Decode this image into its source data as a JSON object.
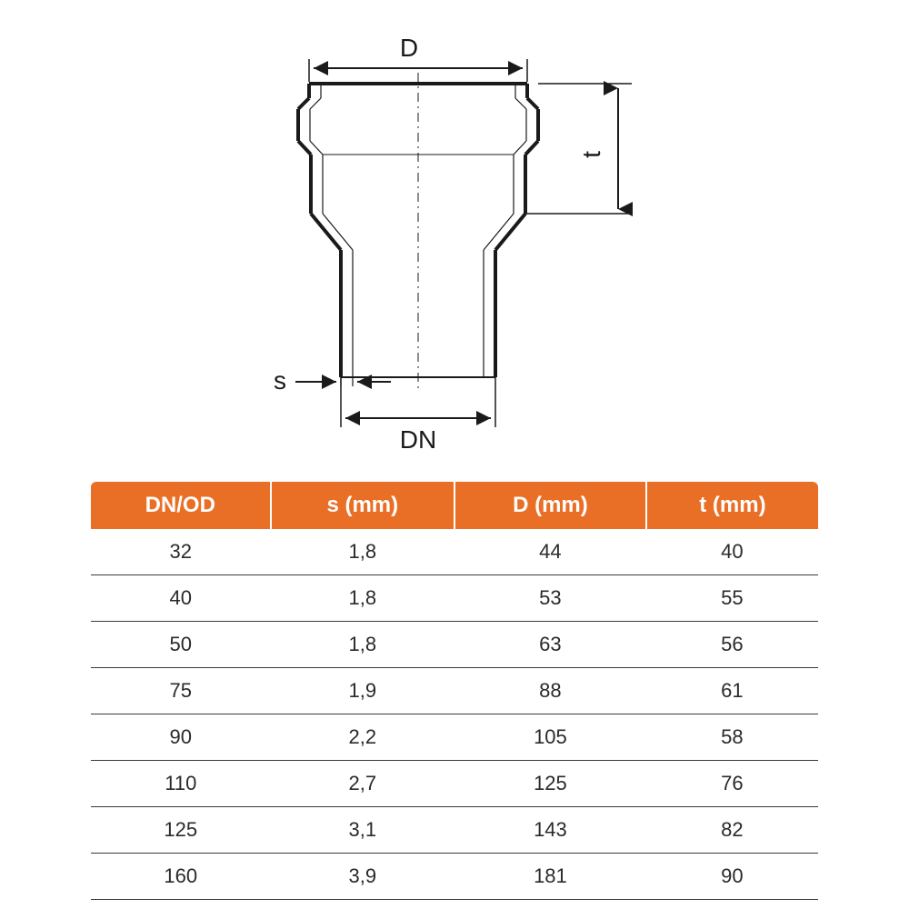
{
  "diagram": {
    "labels": {
      "D": "D",
      "t": "t",
      "s": "s",
      "DN": "DN"
    },
    "stroke_color": "#1a1a1a",
    "stroke_width_heavy": 4,
    "stroke_width_light": 1.5,
    "dash_pattern": "6,4"
  },
  "table": {
    "type": "table",
    "header_bg": "#e96f26",
    "header_fg": "#ffffff",
    "row_border_color": "#3a3a3a",
    "header_fontsize": 24,
    "cell_fontsize": 22,
    "columns": [
      "DN/OD",
      "s (mm)",
      "D (mm)",
      "t (mm)"
    ],
    "rows": [
      [
        "32",
        "1,8",
        "44",
        "40"
      ],
      [
        "40",
        "1,8",
        "53",
        "55"
      ],
      [
        "50",
        "1,8",
        "63",
        "56"
      ],
      [
        "75",
        "1,9",
        "88",
        "61"
      ],
      [
        "90",
        "2,2",
        "105",
        "58"
      ],
      [
        "110",
        "2,7",
        "125",
        "76"
      ],
      [
        "125",
        "3,1",
        "143",
        "82"
      ],
      [
        "160",
        "3,9",
        "181",
        "90"
      ]
    ]
  }
}
